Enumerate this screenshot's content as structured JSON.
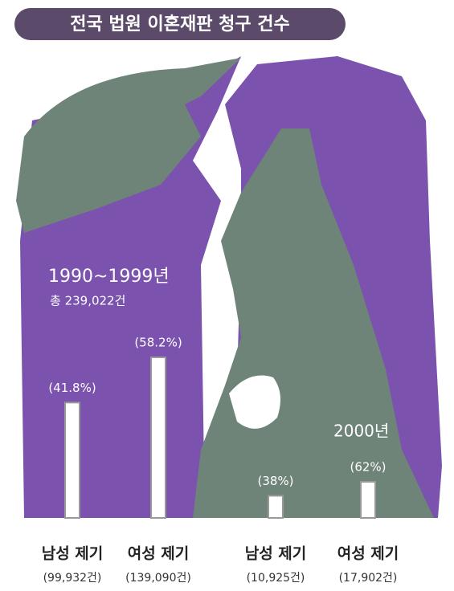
{
  "title": "전국 법원 이혼재판 청구 건수",
  "chart_data": [
    {
      "type": "bar",
      "subtitle": "1990~1999년",
      "total_label": "총 239,022건",
      "categories": [
        "남성 제기",
        "여성 제기"
      ],
      "values": [
        41.8,
        58.2
      ],
      "value_labels": [
        "(41.8%)",
        "(58.2%)"
      ],
      "count_labels": [
        "(99,932건)",
        "(139,090건)"
      ],
      "color": "#ffffff"
    },
    {
      "type": "bar",
      "subtitle": "2000년",
      "categories": [
        "남성 제기",
        "여성 제기"
      ],
      "values": [
        38,
        62
      ],
      "value_labels": [
        "(38%)",
        "(62%)"
      ],
      "count_labels": [
        "(10,925건)",
        "(17,902건)"
      ],
      "color": "#ffffff"
    }
  ]
}
